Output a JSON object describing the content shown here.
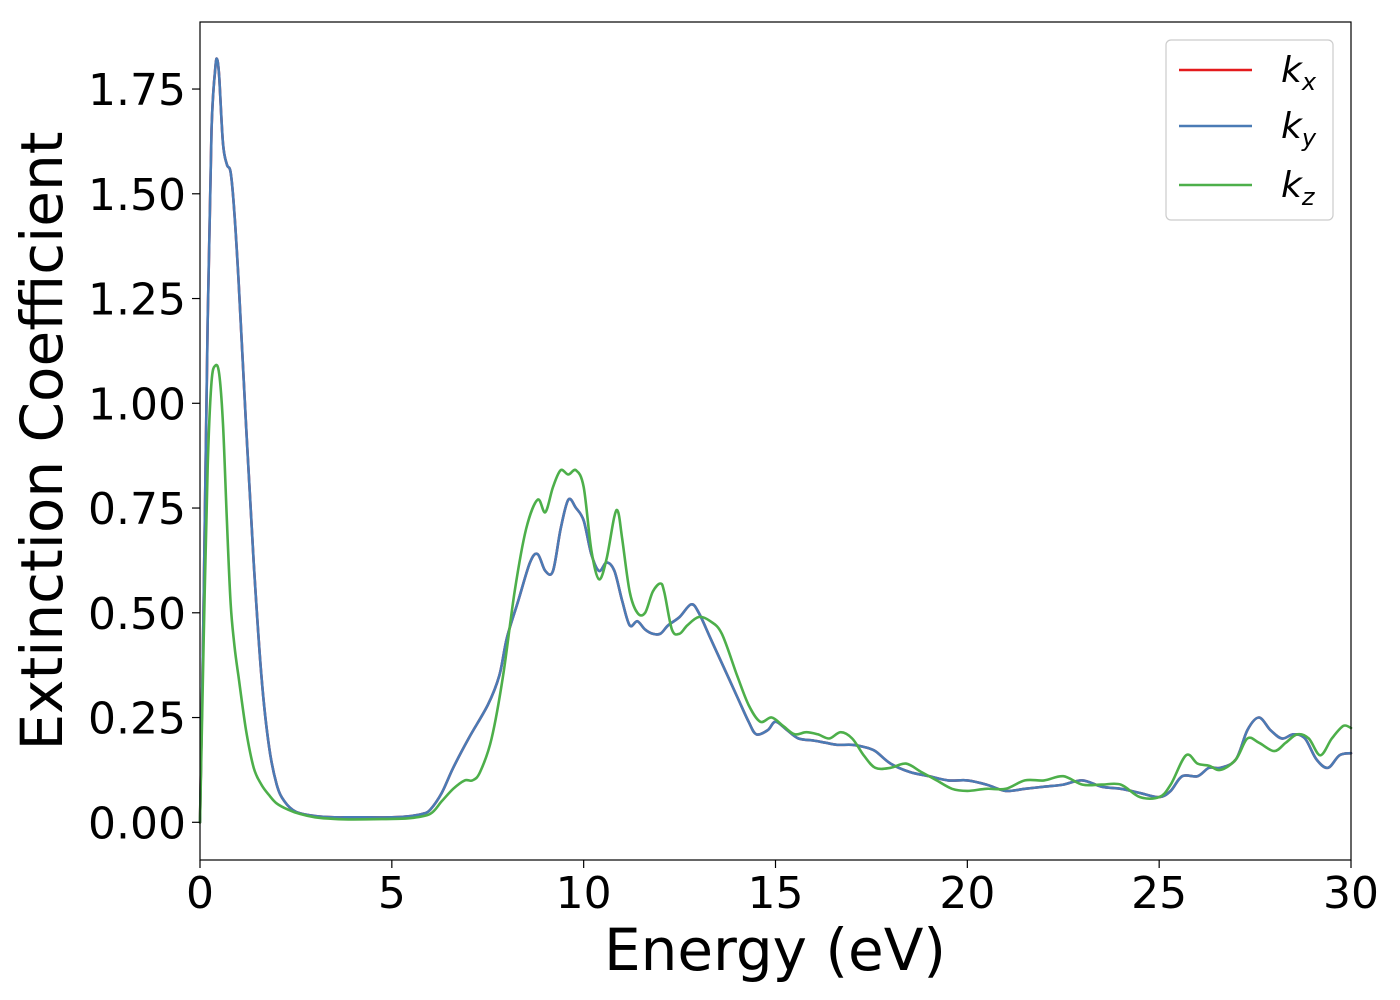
{
  "chart_data": {
    "type": "line",
    "xlabel": "Energy (eV)",
    "ylabel": "Extinction Coefficient",
    "xlim": [
      0,
      30
    ],
    "ylim": [
      -0.09,
      1.91
    ],
    "xticks": [
      0,
      5,
      10,
      15,
      20,
      25,
      30
    ],
    "xtick_labels": [
      "0",
      "5",
      "10",
      "15",
      "20",
      "25",
      "30"
    ],
    "yticks": [
      0.0,
      0.25,
      0.5,
      0.75,
      1.0,
      1.25,
      1.5,
      1.75
    ],
    "ytick_labels": [
      "0.00",
      "0.25",
      "0.50",
      "0.75",
      "1.00",
      "1.25",
      "1.50",
      "1.75"
    ],
    "grid": false,
    "legend_position": "top-right",
    "series": [
      {
        "name": "k",
        "subscript": "x",
        "color": "#e41a1c",
        "x": [
          0.0,
          0.1,
          0.2,
          0.3,
          0.4,
          0.45,
          0.5,
          0.6,
          0.7,
          0.8,
          0.9,
          1.0,
          1.2,
          1.4,
          1.6,
          1.8,
          2.0,
          2.2,
          2.5,
          3.0,
          3.5,
          4.0,
          5.0,
          5.5,
          5.8,
          6.0,
          6.3,
          6.6,
          7.0,
          7.5,
          7.8,
          8.0,
          8.3,
          8.6,
          8.8,
          9.0,
          9.2,
          9.4,
          9.6,
          9.8,
          10.0,
          10.2,
          10.4,
          10.6,
          10.8,
          11.0,
          11.2,
          11.4,
          11.6,
          11.8,
          12.0,
          12.2,
          12.5,
          12.8,
          13.0,
          13.3,
          13.6,
          14.0,
          14.3,
          14.5,
          14.8,
          15.0,
          15.3,
          15.6,
          16.0,
          16.3,
          16.6,
          17.0,
          17.3,
          17.6,
          18.0,
          18.5,
          19.0,
          19.5,
          20.0,
          20.5,
          21.0,
          21.5,
          22.0,
          22.5,
          23.0,
          23.5,
          24.0,
          24.5,
          25.0,
          25.3,
          25.6,
          26.0,
          26.3,
          26.6,
          27.0,
          27.3,
          27.6,
          27.9,
          28.2,
          28.5,
          28.8,
          29.1,
          29.4,
          29.7,
          30.0
        ],
        "y": [
          0.0,
          0.55,
          1.2,
          1.65,
          1.8,
          1.82,
          1.78,
          1.62,
          1.57,
          1.55,
          1.45,
          1.3,
          0.95,
          0.62,
          0.35,
          0.18,
          0.09,
          0.05,
          0.025,
          0.015,
          0.012,
          0.012,
          0.012,
          0.015,
          0.02,
          0.03,
          0.07,
          0.13,
          0.2,
          0.28,
          0.35,
          0.44,
          0.53,
          0.62,
          0.64,
          0.6,
          0.6,
          0.7,
          0.77,
          0.75,
          0.72,
          0.64,
          0.6,
          0.62,
          0.6,
          0.53,
          0.47,
          0.48,
          0.46,
          0.45,
          0.45,
          0.47,
          0.49,
          0.52,
          0.5,
          0.44,
          0.38,
          0.3,
          0.24,
          0.21,
          0.22,
          0.24,
          0.22,
          0.2,
          0.195,
          0.19,
          0.185,
          0.185,
          0.18,
          0.17,
          0.14,
          0.12,
          0.11,
          0.1,
          0.1,
          0.09,
          0.075,
          0.08,
          0.085,
          0.09,
          0.1,
          0.085,
          0.08,
          0.07,
          0.06,
          0.075,
          0.11,
          0.11,
          0.13,
          0.13,
          0.15,
          0.22,
          0.25,
          0.22,
          0.2,
          0.21,
          0.2,
          0.15,
          0.13,
          0.16,
          0.165
        ]
      },
      {
        "name": "k",
        "subscript": "y",
        "color": "#4a7bb5",
        "x": [
          0.0,
          0.1,
          0.2,
          0.3,
          0.4,
          0.45,
          0.5,
          0.6,
          0.7,
          0.8,
          0.9,
          1.0,
          1.2,
          1.4,
          1.6,
          1.8,
          2.0,
          2.2,
          2.5,
          3.0,
          3.5,
          4.0,
          5.0,
          5.5,
          5.8,
          6.0,
          6.3,
          6.6,
          7.0,
          7.5,
          7.8,
          8.0,
          8.3,
          8.6,
          8.8,
          9.0,
          9.2,
          9.4,
          9.6,
          9.8,
          10.0,
          10.2,
          10.4,
          10.6,
          10.8,
          11.0,
          11.2,
          11.4,
          11.6,
          11.8,
          12.0,
          12.2,
          12.5,
          12.8,
          13.0,
          13.3,
          13.6,
          14.0,
          14.3,
          14.5,
          14.8,
          15.0,
          15.3,
          15.6,
          16.0,
          16.3,
          16.6,
          17.0,
          17.3,
          17.6,
          18.0,
          18.5,
          19.0,
          19.5,
          20.0,
          20.5,
          21.0,
          21.5,
          22.0,
          22.5,
          23.0,
          23.5,
          24.0,
          24.5,
          25.0,
          25.3,
          25.6,
          26.0,
          26.3,
          26.6,
          27.0,
          27.3,
          27.6,
          27.9,
          28.2,
          28.5,
          28.8,
          29.1,
          29.4,
          29.7,
          30.0
        ],
        "y": [
          0.0,
          0.55,
          1.2,
          1.65,
          1.8,
          1.82,
          1.78,
          1.62,
          1.57,
          1.55,
          1.45,
          1.3,
          0.95,
          0.62,
          0.35,
          0.18,
          0.09,
          0.05,
          0.025,
          0.015,
          0.012,
          0.012,
          0.012,
          0.015,
          0.02,
          0.03,
          0.07,
          0.13,
          0.2,
          0.28,
          0.35,
          0.44,
          0.53,
          0.62,
          0.64,
          0.6,
          0.6,
          0.7,
          0.77,
          0.75,
          0.72,
          0.64,
          0.6,
          0.62,
          0.6,
          0.53,
          0.47,
          0.48,
          0.46,
          0.45,
          0.45,
          0.47,
          0.49,
          0.52,
          0.5,
          0.44,
          0.38,
          0.3,
          0.24,
          0.21,
          0.22,
          0.24,
          0.22,
          0.2,
          0.195,
          0.19,
          0.185,
          0.185,
          0.18,
          0.17,
          0.14,
          0.12,
          0.11,
          0.1,
          0.1,
          0.09,
          0.075,
          0.08,
          0.085,
          0.09,
          0.1,
          0.085,
          0.08,
          0.07,
          0.06,
          0.075,
          0.11,
          0.11,
          0.13,
          0.13,
          0.15,
          0.22,
          0.25,
          0.22,
          0.2,
          0.21,
          0.2,
          0.15,
          0.13,
          0.16,
          0.165
        ]
      },
      {
        "name": "k",
        "subscript": "z",
        "color": "#4daf4a",
        "x": [
          0.0,
          0.1,
          0.2,
          0.3,
          0.4,
          0.5,
          0.6,
          0.7,
          0.8,
          0.9,
          1.0,
          1.2,
          1.4,
          1.6,
          1.8,
          2.0,
          2.3,
          2.6,
          3.0,
          3.5,
          4.0,
          5.0,
          5.5,
          6.0,
          6.3,
          6.6,
          6.9,
          7.1,
          7.3,
          7.6,
          7.9,
          8.2,
          8.5,
          8.8,
          9.0,
          9.2,
          9.4,
          9.6,
          9.8,
          10.0,
          10.2,
          10.4,
          10.6,
          10.8,
          10.9,
          11.0,
          11.2,
          11.4,
          11.6,
          11.8,
          12.0,
          12.1,
          12.3,
          12.5,
          12.7,
          13.0,
          13.3,
          13.6,
          14.0,
          14.3,
          14.6,
          14.9,
          15.2,
          15.5,
          15.8,
          16.1,
          16.4,
          16.7,
          17.0,
          17.3,
          17.6,
          18.0,
          18.4,
          18.8,
          19.2,
          19.6,
          20.0,
          20.5,
          21.0,
          21.5,
          22.0,
          22.5,
          23.0,
          23.5,
          24.0,
          24.5,
          25.0,
          25.3,
          25.7,
          26.0,
          26.3,
          26.6,
          27.0,
          27.3,
          27.6,
          28.0,
          28.3,
          28.6,
          28.9,
          29.2,
          29.5,
          29.8,
          30.0
        ],
        "y": [
          0.0,
          0.45,
          0.85,
          1.05,
          1.09,
          1.07,
          0.95,
          0.72,
          0.52,
          0.42,
          0.35,
          0.22,
          0.13,
          0.09,
          0.065,
          0.045,
          0.03,
          0.02,
          0.012,
          0.008,
          0.007,
          0.008,
          0.01,
          0.02,
          0.05,
          0.08,
          0.1,
          0.1,
          0.12,
          0.2,
          0.35,
          0.55,
          0.7,
          0.77,
          0.74,
          0.8,
          0.84,
          0.83,
          0.84,
          0.8,
          0.65,
          0.58,
          0.63,
          0.73,
          0.74,
          0.68,
          0.55,
          0.5,
          0.5,
          0.55,
          0.57,
          0.55,
          0.46,
          0.45,
          0.47,
          0.49,
          0.48,
          0.45,
          0.35,
          0.28,
          0.24,
          0.25,
          0.23,
          0.21,
          0.215,
          0.21,
          0.2,
          0.215,
          0.2,
          0.16,
          0.13,
          0.13,
          0.14,
          0.12,
          0.1,
          0.08,
          0.075,
          0.08,
          0.08,
          0.1,
          0.1,
          0.11,
          0.09,
          0.09,
          0.09,
          0.06,
          0.06,
          0.09,
          0.16,
          0.14,
          0.135,
          0.125,
          0.15,
          0.2,
          0.19,
          0.17,
          0.19,
          0.21,
          0.2,
          0.16,
          0.2,
          0.23,
          0.225
        ]
      }
    ]
  }
}
